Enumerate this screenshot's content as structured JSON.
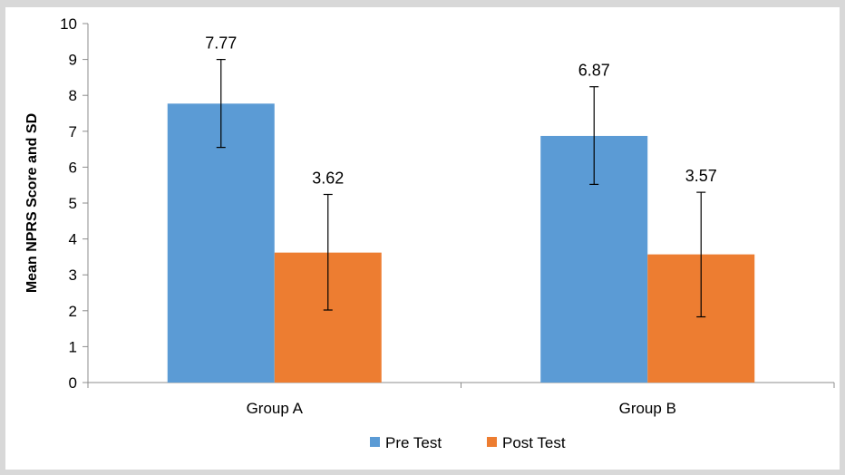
{
  "chart_data": {
    "type": "bar",
    "title": "",
    "xlabel": "",
    "ylabel": "Mean NPRS Score and SD",
    "ylim": [
      0,
      10
    ],
    "yticks": [
      0,
      1,
      2,
      3,
      4,
      5,
      6,
      7,
      8,
      9,
      10
    ],
    "categories": [
      "Group A",
      "Group B"
    ],
    "series": [
      {
        "name": "Pre Test",
        "color": "#5b9bd5",
        "values": [
          7.77,
          6.87
        ],
        "error_low": [
          6.55,
          5.52
        ],
        "error_high": [
          9.0,
          8.24
        ],
        "data_labels": [
          "7.77",
          "6.87"
        ]
      },
      {
        "name": "Post Test",
        "color": "#ed7d31",
        "values": [
          3.62,
          3.57
        ],
        "error_low": [
          2.02,
          1.83
        ],
        "error_high": [
          5.24,
          5.3
        ],
        "data_labels": [
          "3.62",
          "3.57"
        ]
      }
    ],
    "grid": false,
    "legend_position": "bottom"
  }
}
